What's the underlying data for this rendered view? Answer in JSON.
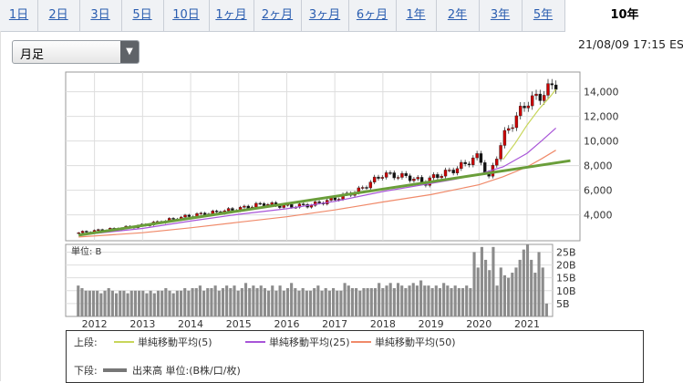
{
  "tabs": [
    {
      "label": "1日"
    },
    {
      "label": "2日"
    },
    {
      "label": "3日"
    },
    {
      "label": "5日"
    },
    {
      "label": "10日"
    },
    {
      "label": "1ヶ月"
    },
    {
      "label": "2ヶ月"
    },
    {
      "label": "3ヶ月"
    },
    {
      "label": "6ヶ月"
    },
    {
      "label": "1年"
    },
    {
      "label": "2年"
    },
    {
      "label": "3年"
    },
    {
      "label": "5年"
    },
    {
      "label": "10年"
    }
  ],
  "active_tab": "10年",
  "period_select": {
    "value": "月足"
  },
  "timestamp": "21/08/09 17:15 ES",
  "volume_panel": {
    "unit_label": "単位: B"
  },
  "legend": {
    "upper_label": "上段:",
    "lower_label": "下段:",
    "ma5": "単純移動平均(5)",
    "ma25": "単純移動平均(25)",
    "ma50": "単純移動平均(50)",
    "volume": "出来高 単位:(B株/口/枚)"
  },
  "colors": {
    "candle_up": "#cc0000",
    "candle_down": "#111111",
    "ma5": "#c8d65a",
    "ma25": "#a855d8",
    "ma50": "#f08a6a",
    "trendline": "#6a9e3a",
    "volume_bar": "#8c8c8c"
  },
  "chart_data": [
    {
      "type": "candlestick",
      "title": "",
      "y_ticks": [
        4000,
        6000,
        8000,
        10000,
        12000,
        14000
      ],
      "y_tick_labels": [
        "4,000",
        "6,000",
        "8,000",
        "10,000",
        "12,000",
        "14,000"
      ],
      "ylim": [
        1900,
        15600
      ],
      "x_tick_labels": [
        "2012",
        "2013",
        "2014",
        "2015",
        "2016",
        "2017",
        "2018",
        "2019",
        "2020",
        "2021"
      ],
      "x_years": [
        2012,
        2013,
        2014,
        2015,
        2016,
        2017,
        2018,
        2019,
        2020,
        2021
      ],
      "xlim": [
        2011.4,
        2022.1
      ],
      "grid": true,
      "close_points": [
        [
          2011.67,
          2550
        ],
        [
          2012.0,
          2700
        ],
        [
          2012.5,
          2900
        ],
        [
          2013.0,
          3150
        ],
        [
          2013.5,
          3550
        ],
        [
          2014.0,
          3950
        ],
        [
          2014.5,
          4200
        ],
        [
          2015.0,
          4500
        ],
        [
          2015.5,
          4900
        ],
        [
          2016.0,
          4700
        ],
        [
          2016.5,
          4800
        ],
        [
          2017.0,
          5300
        ],
        [
          2017.5,
          6000
        ],
        [
          2018.0,
          7300
        ],
        [
          2018.5,
          7100
        ],
        [
          2018.9,
          6600
        ],
        [
          2019.0,
          7000
        ],
        [
          2019.5,
          7700
        ],
        [
          2020.0,
          8800
        ],
        [
          2020.2,
          6900
        ],
        [
          2020.5,
          10300
        ],
        [
          2020.75,
          11800
        ],
        [
          2021.0,
          13200
        ],
        [
          2021.25,
          13600
        ],
        [
          2021.5,
          14400
        ],
        [
          2021.6,
          14700
        ]
      ],
      "ma5_points": [
        [
          2020.5,
          8500
        ],
        [
          2020.75,
          9800
        ],
        [
          2021.0,
          11300
        ],
        [
          2021.25,
          12600
        ],
        [
          2021.5,
          13700
        ],
        [
          2021.6,
          14200
        ]
      ],
      "ma25_points": [
        [
          2011.67,
          2350
        ],
        [
          2013.0,
          2900
        ],
        [
          2014.0,
          3500
        ],
        [
          2015.0,
          4050
        ],
        [
          2016.0,
          4500
        ],
        [
          2017.0,
          5100
        ],
        [
          2018.0,
          5900
        ],
        [
          2019.0,
          6550
        ],
        [
          2019.5,
          6900
        ],
        [
          2020.0,
          7300
        ],
        [
          2020.5,
          7900
        ],
        [
          2021.0,
          9000
        ],
        [
          2021.3,
          10000
        ],
        [
          2021.6,
          11050
        ]
      ],
      "ma50_points": [
        [
          2011.67,
          2200
        ],
        [
          2013.0,
          2550
        ],
        [
          2014.0,
          2950
        ],
        [
          2015.0,
          3400
        ],
        [
          2016.0,
          3850
        ],
        [
          2017.0,
          4400
        ],
        [
          2018.0,
          5050
        ],
        [
          2019.0,
          5650
        ],
        [
          2020.0,
          6450
        ],
        [
          2020.5,
          7100
        ],
        [
          2021.0,
          7900
        ],
        [
          2021.3,
          8550
        ],
        [
          2021.6,
          9250
        ]
      ],
      "trendline": [
        [
          2011.67,
          2350
        ],
        [
          2021.9,
          8400
        ]
      ]
    },
    {
      "type": "bar",
      "title": "",
      "y_ticks": [
        5,
        10,
        15,
        20,
        25
      ],
      "y_tick_labels": [
        "5B",
        "10B",
        "15B",
        "20B",
        "25B"
      ],
      "ylim": [
        0,
        28
      ],
      "volumes": [
        12,
        11,
        10,
        10,
        10,
        10,
        9,
        10,
        11,
        10,
        9,
        10,
        10,
        9,
        10,
        10,
        10,
        10,
        9,
        10,
        9,
        10,
        10,
        11,
        10,
        9,
        10,
        10,
        11,
        10,
        11,
        11,
        12,
        10,
        11,
        11,
        12,
        10,
        11,
        12,
        11,
        12,
        10,
        11,
        13,
        11,
        12,
        11,
        12,
        11,
        10,
        12,
        10,
        12,
        10,
        11,
        13,
        11,
        10,
        11,
        10,
        10,
        11,
        12,
        10,
        11,
        10,
        11,
        10,
        10,
        13,
        12,
        11,
        11,
        10,
        11,
        11,
        11,
        11,
        13,
        11,
        12,
        13,
        11,
        13,
        12,
        11,
        12,
        13,
        12,
        14,
        12,
        12,
        11,
        12,
        11,
        13,
        12,
        11,
        12,
        11,
        11,
        12,
        11,
        25,
        19,
        27,
        22,
        18,
        27,
        12,
        19,
        16,
        15,
        17,
        19,
        22,
        26,
        28,
        22,
        17,
        25,
        19,
        5
      ]
    }
  ]
}
